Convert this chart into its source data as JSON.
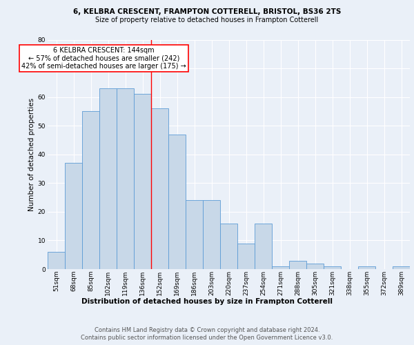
{
  "title1": "6, KELBRA CRESCENT, FRAMPTON COTTERELL, BRISTOL, BS36 2TS",
  "title2": "Size of property relative to detached houses in Frampton Cotterell",
  "xlabel": "Distribution of detached houses by size in Frampton Cotterell",
  "ylabel": "Number of detached properties",
  "footnote1": "Contains HM Land Registry data © Crown copyright and database right 2024.",
  "footnote2": "Contains public sector information licensed under the Open Government Licence v3.0.",
  "categories": [
    "51sqm",
    "68sqm",
    "85sqm",
    "102sqm",
    "119sqm",
    "136sqm",
    "152sqm",
    "169sqm",
    "186sqm",
    "203sqm",
    "220sqm",
    "237sqm",
    "254sqm",
    "271sqm",
    "288sqm",
    "305sqm",
    "321sqm",
    "338sqm",
    "355sqm",
    "372sqm",
    "389sqm"
  ],
  "values": [
    6,
    37,
    55,
    63,
    63,
    61,
    56,
    47,
    24,
    24,
    16,
    9,
    16,
    1,
    3,
    2,
    1,
    0,
    1,
    0,
    1
  ],
  "bar_color": "#c8d8e8",
  "bar_edge_color": "#5b9bd5",
  "ylim": [
    0,
    80
  ],
  "yticks": [
    0,
    10,
    20,
    30,
    40,
    50,
    60,
    70,
    80
  ],
  "line_x_index": 5.5,
  "annotation_line1": "6 KELBRA CRESCENT: 144sqm",
  "annotation_line2": "← 57% of detached houses are smaller (242)",
  "annotation_line3": "42% of semi-detached houses are larger (175) →",
  "vline_color": "red",
  "bg_color": "#eaf0f8",
  "plot_bg_color": "#eaf0f8",
  "grid_color": "#ffffff",
  "title1_fontsize": 7.5,
  "title2_fontsize": 7.0,
  "ylabel_fontsize": 7.5,
  "xlabel_fontsize": 7.5,
  "tick_fontsize": 6.5,
  "annot_fontsize": 7.0,
  "footnote_fontsize": 6.0
}
